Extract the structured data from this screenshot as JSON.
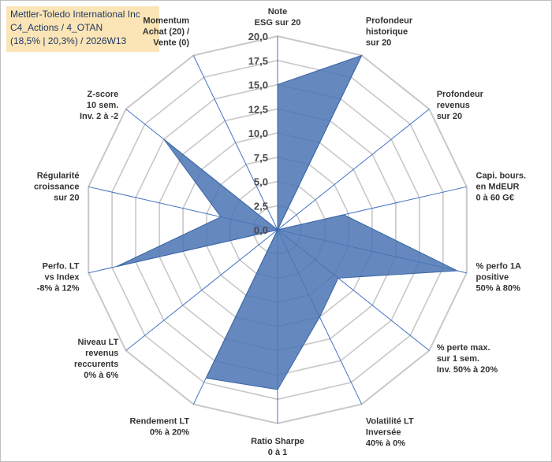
{
  "header": {
    "line1": "Mettler-Toledo International Inc",
    "line2": "C4_Actions / 4_OTAN",
    "line3": "(18,5% | 20,3%) / 2026W13"
  },
  "colors": {
    "fill": "#4a74b4",
    "stroke": "#3a64a4",
    "grid": "#c8c8c8",
    "axis": "#4472c4",
    "info_bg": "#fbe5b6"
  },
  "chart_data": {
    "type": "radar",
    "rmin": 0,
    "rmax": 20,
    "tick_labels": [
      "0,0",
      "2,5",
      "5,0",
      "7,5",
      "10,0",
      "12,5",
      "15,0",
      "17,5",
      "20,0"
    ],
    "categories": [
      [
        "Note",
        "ESG sur 20"
      ],
      [
        "Profondeur",
        "historique",
        "sur 20"
      ],
      [
        "Profondeur",
        "revenus",
        "sur 20"
      ],
      [
        "Capi. bours.",
        "en MdEUR",
        "0 à 60 G€"
      ],
      [
        "% perfo 1A",
        "positive",
        "50% à 80%"
      ],
      [
        "% perte max.",
        "sur 1 sem.",
        "Inv. 50% à 20%"
      ],
      [
        "Volatilité LT",
        "Inversée",
        "40% à 0%"
      ],
      [
        "Ratio Sharpe",
        "0 à 1"
      ],
      [
        "Rendement LT",
        "0% à 20%"
      ],
      [
        "Niveau LT",
        "revenus",
        "reccurents",
        "0% à 6%"
      ],
      [
        "Perfo. LT",
        "vs Index",
        "-8% à 12%"
      ],
      [
        "Régularité",
        "croissance",
        "sur 20"
      ],
      [
        "Z-score",
        "10 sem.",
        "Inv. 2 à -2"
      ],
      [
        "Momentum",
        "Achat (20) /",
        "Vente (0)"
      ]
    ],
    "values": [
      15,
      20,
      0,
      7,
      19,
      8,
      10,
      16.5,
      17,
      0,
      17,
      6,
      15,
      0
    ]
  }
}
